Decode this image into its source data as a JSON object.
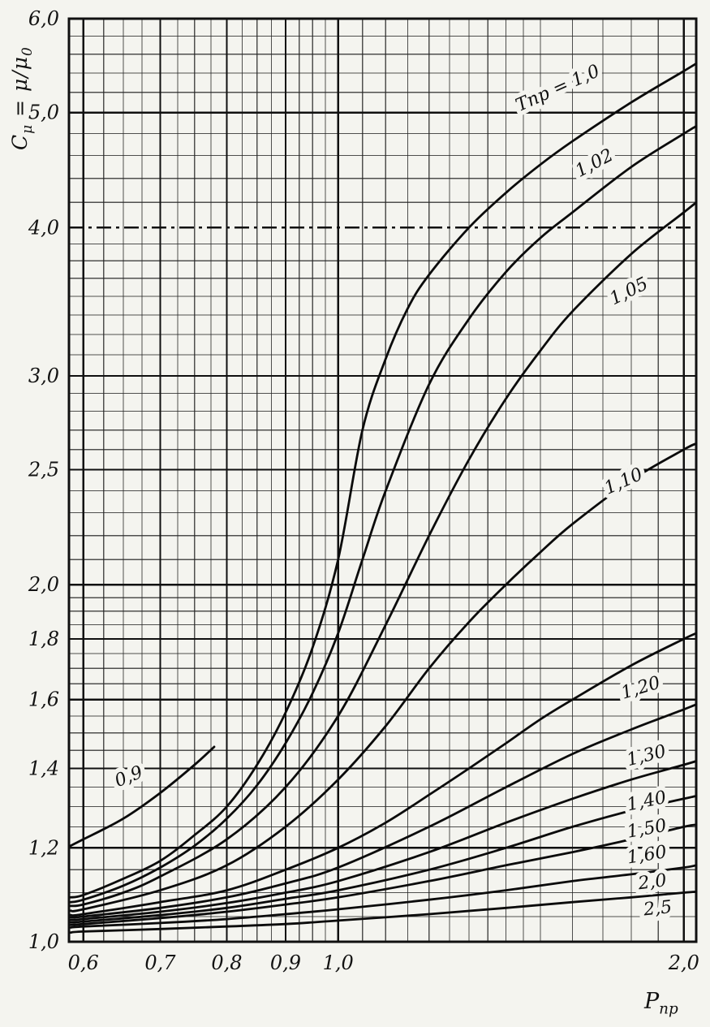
{
  "figure": {
    "background": "#f4f4ef",
    "line_color": "#0b0b0b"
  },
  "chart_data": {
    "type": "line",
    "title": "",
    "x_scale": "log",
    "y_scale": "log",
    "xlim": [
      0.6,
      2.0
    ],
    "ylim": [
      1.0,
      6.0
    ],
    "x_draw": [
      0.583,
      2.05
    ],
    "y_draw": [
      1.0,
      6.0
    ],
    "grid": true,
    "legend": "inline-curve-labels",
    "xlabel": "Pпр",
    "ylabel": "Cμ = μ/μ0",
    "xlabel_parts": [
      "P",
      "пр"
    ],
    "ylabel_parts": [
      "C",
      "μ",
      " = μ/μ",
      "0"
    ],
    "x_ticks": [
      {
        "v": 0.6,
        "label": "0,6"
      },
      {
        "v": 0.7,
        "label": "0,7"
      },
      {
        "v": 0.8,
        "label": "0,8"
      },
      {
        "v": 0.9,
        "label": "0,9"
      },
      {
        "v": 1.0,
        "label": "1,0"
      },
      {
        "v": 2.0,
        "label": "2,0"
      }
    ],
    "y_ticks": [
      {
        "v": 1.0,
        "label": "1,0"
      },
      {
        "v": 1.2,
        "label": "1,2"
      },
      {
        "v": 1.4,
        "label": "1,4"
      },
      {
        "v": 1.6,
        "label": "1,6"
      },
      {
        "v": 1.8,
        "label": "1,8"
      },
      {
        "v": 2.0,
        "label": "2,0"
      },
      {
        "v": 2.5,
        "label": "2,5"
      },
      {
        "v": 3.0,
        "label": "3,0"
      },
      {
        "v": 4.0,
        "label": "4,0",
        "dash": true
      },
      {
        "v": 5.0,
        "label": "5,0"
      },
      {
        "v": 6.0,
        "label": "6,0"
      }
    ],
    "series": [
      {
        "tpr": 0.9,
        "name": "Тпр = 0,9",
        "label": "0,9",
        "label_at": [
          0.66,
          1.364
        ],
        "label_angle": -22,
        "x": [
          0.585,
          0.6,
          0.65,
          0.7,
          0.75,
          0.78
        ],
        "y": [
          1.205,
          1.22,
          1.27,
          1.335,
          1.41,
          1.46
        ]
      },
      {
        "tpr": 1.0,
        "name": "Тпр = 1,0",
        "label": "Тпр = 1,0",
        "label_at": [
          1.56,
          5.19
        ],
        "label_angle": -24,
        "x": [
          0.585,
          0.6,
          0.65,
          0.7,
          0.75,
          0.8,
          0.85,
          0.9,
          0.95,
          1.0,
          1.05,
          1.1,
          1.15,
          1.2,
          1.3,
          1.4,
          1.5,
          1.6,
          1.8,
          2.0,
          2.05
        ],
        "y": [
          1.09,
          1.095,
          1.13,
          1.17,
          1.23,
          1.3,
          1.41,
          1.56,
          1.77,
          2.1,
          2.7,
          3.1,
          3.42,
          3.65,
          4.0,
          4.28,
          4.52,
          4.73,
          5.1,
          5.42,
          5.5
        ]
      },
      {
        "tpr": 1.02,
        "name": "Тпр = 1,02",
        "label": "1,02",
        "label_at": [
          1.68,
          4.49
        ],
        "label_angle": -28,
        "x": [
          0.585,
          0.6,
          0.65,
          0.7,
          0.75,
          0.8,
          0.85,
          0.9,
          0.95,
          1.0,
          1.05,
          1.1,
          1.2,
          1.3,
          1.4,
          1.5,
          1.6,
          1.8,
          2.0,
          2.05
        ],
        "y": [
          1.08,
          1.085,
          1.115,
          1.155,
          1.205,
          1.27,
          1.355,
          1.47,
          1.62,
          1.82,
          2.1,
          2.4,
          2.95,
          3.35,
          3.67,
          3.92,
          4.12,
          4.5,
          4.8,
          4.87
        ]
      },
      {
        "tpr": 1.05,
        "name": "Тпр = 1,05",
        "label": "1,05",
        "label_at": [
          1.8,
          3.5
        ],
        "label_angle": -26,
        "x": [
          0.585,
          0.6,
          0.65,
          0.7,
          0.8,
          0.9,
          1.0,
          1.1,
          1.2,
          1.3,
          1.4,
          1.5,
          1.6,
          1.8,
          2.0,
          2.05
        ],
        "y": [
          1.072,
          1.075,
          1.1,
          1.135,
          1.22,
          1.35,
          1.55,
          1.85,
          2.2,
          2.55,
          2.87,
          3.15,
          3.4,
          3.8,
          4.12,
          4.2
        ]
      },
      {
        "tpr": 1.1,
        "name": "Тпр = 1,10",
        "label": "1,10",
        "label_at": [
          1.78,
          2.42
        ],
        "label_angle": -24,
        "x": [
          0.585,
          0.6,
          0.7,
          0.8,
          0.9,
          1.0,
          1.1,
          1.2,
          1.3,
          1.4,
          1.5,
          1.6,
          1.8,
          2.0,
          2.05
        ],
        "y": [
          1.062,
          1.065,
          1.105,
          1.16,
          1.25,
          1.37,
          1.52,
          1.7,
          1.86,
          2.0,
          2.13,
          2.25,
          2.45,
          2.6,
          2.63
        ]
      },
      {
        "tpr": 1.2,
        "name": "Тпр = 1,20",
        "label": "1,20",
        "label_at": [
          1.84,
          1.62
        ],
        "label_angle": -17,
        "x": [
          0.585,
          0.6,
          0.7,
          0.8,
          0.9,
          1.0,
          1.1,
          1.2,
          1.3,
          1.4,
          1.5,
          1.6,
          1.8,
          2.0,
          2.05
        ],
        "y": [
          1.053,
          1.055,
          1.08,
          1.105,
          1.15,
          1.2,
          1.26,
          1.33,
          1.4,
          1.47,
          1.54,
          1.6,
          1.71,
          1.8,
          1.82
        ]
      },
      {
        "tpr": 1.3,
        "name": "Тпр = 1,30",
        "label": "1,30",
        "label_at": [
          1.86,
          1.42
        ],
        "label_angle": -14,
        "x": [
          0.585,
          0.6,
          0.7,
          0.8,
          0.9,
          1.0,
          1.2,
          1.4,
          1.6,
          1.8,
          2.0,
          2.05
        ],
        "y": [
          1.048,
          1.05,
          1.068,
          1.09,
          1.12,
          1.155,
          1.25,
          1.35,
          1.44,
          1.51,
          1.57,
          1.585
        ]
      },
      {
        "tpr": 1.4,
        "name": "Тпр = 1,40",
        "label": "1,40",
        "label_at": [
          1.86,
          1.3
        ],
        "label_angle": -12,
        "x": [
          0.585,
          0.6,
          0.7,
          0.8,
          0.9,
          1.0,
          1.2,
          1.4,
          1.6,
          1.8,
          2.0,
          2.05
        ],
        "y": [
          1.043,
          1.045,
          1.06,
          1.078,
          1.1,
          1.125,
          1.19,
          1.26,
          1.32,
          1.37,
          1.41,
          1.42
        ]
      },
      {
        "tpr": 1.5,
        "name": "Тпр = 1,50",
        "label": "1,50",
        "label_at": [
          1.86,
          1.232
        ],
        "label_angle": -10,
        "x": [
          0.585,
          0.6,
          0.7,
          0.8,
          0.9,
          1.0,
          1.2,
          1.4,
          1.6,
          1.8,
          2.0,
          2.05
        ],
        "y": [
          1.038,
          1.04,
          1.053,
          1.068,
          1.087,
          1.105,
          1.15,
          1.2,
          1.25,
          1.29,
          1.32,
          1.327
        ]
      },
      {
        "tpr": 1.6,
        "name": "Тпр = 1,60",
        "label": "1,60",
        "label_at": [
          1.86,
          1.171
        ],
        "label_angle": -9,
        "x": [
          0.585,
          0.6,
          0.7,
          0.8,
          0.9,
          1.0,
          1.2,
          1.4,
          1.6,
          1.8,
          2.0,
          2.05
        ],
        "y": [
          1.033,
          1.035,
          1.047,
          1.06,
          1.075,
          1.09,
          1.125,
          1.16,
          1.19,
          1.22,
          1.25,
          1.255
        ]
      },
      {
        "tpr": 2.0,
        "name": "Тпр = 2,0",
        "label": "2,0",
        "label_at": [
          1.88,
          1.111
        ],
        "label_angle": -7,
        "x": [
          0.585,
          0.6,
          0.7,
          0.8,
          0.9,
          1.0,
          1.2,
          1.4,
          1.6,
          1.8,
          2.0,
          2.05
        ],
        "y": [
          1.028,
          1.03,
          1.037,
          1.045,
          1.055,
          1.065,
          1.085,
          1.105,
          1.125,
          1.14,
          1.155,
          1.16
        ]
      },
      {
        "tpr": 2.5,
        "name": "Тпр = 2,5",
        "label": "2,5",
        "label_at": [
          1.9,
          1.0555
        ],
        "label_angle": -6,
        "x": [
          0.585,
          0.6,
          0.7,
          0.8,
          0.9,
          1.0,
          1.2,
          1.4,
          1.6,
          1.8,
          2.0,
          2.05
        ],
        "y": [
          1.018,
          1.02,
          1.025,
          1.03,
          1.035,
          1.042,
          1.055,
          1.068,
          1.08,
          1.09,
          1.1,
          1.102
        ]
      }
    ]
  }
}
